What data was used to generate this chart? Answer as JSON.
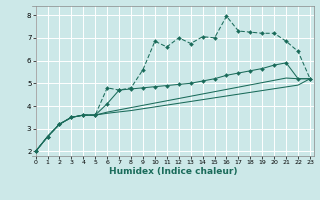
{
  "xlabel": "Humidex (Indice chaleur)",
  "bg_color": "#cce8e8",
  "grid_color": "#ffffff",
  "line_color": "#1a6b5a",
  "x_ticks": [
    0,
    1,
    2,
    3,
    4,
    5,
    6,
    7,
    8,
    9,
    10,
    11,
    12,
    13,
    14,
    15,
    16,
    17,
    18,
    19,
    20,
    21,
    22,
    23
  ],
  "y_ticks": [
    2,
    3,
    4,
    5,
    6,
    7,
    8
  ],
  "ylim": [
    1.8,
    8.4
  ],
  "xlim": [
    -0.3,
    23.3
  ],
  "line1_x": [
    0,
    1,
    2,
    3,
    4,
    5,
    6,
    7,
    8,
    9,
    10,
    11,
    12,
    13,
    14,
    15,
    16,
    17,
    18,
    19,
    20,
    21,
    22,
    23
  ],
  "line1_y": [
    2.0,
    2.65,
    3.2,
    3.5,
    3.6,
    3.6,
    4.8,
    4.7,
    4.8,
    5.6,
    6.85,
    6.6,
    7.0,
    6.75,
    7.05,
    7.0,
    7.95,
    7.3,
    7.25,
    7.2,
    7.2,
    6.85,
    6.4,
    5.2
  ],
  "line2_x": [
    0,
    1,
    2,
    3,
    4,
    5,
    6,
    7,
    8,
    9,
    10,
    11,
    12,
    13,
    14,
    15,
    16,
    17,
    18,
    19,
    20,
    21,
    22,
    23
  ],
  "line2_y": [
    2.0,
    2.65,
    3.2,
    3.5,
    3.6,
    3.6,
    4.1,
    4.7,
    4.75,
    4.8,
    4.85,
    4.9,
    4.95,
    5.0,
    5.1,
    5.2,
    5.35,
    5.45,
    5.55,
    5.65,
    5.8,
    5.9,
    5.2,
    5.2
  ],
  "line3_x": [
    0,
    1,
    2,
    3,
    4,
    5,
    6,
    7,
    8,
    9,
    10,
    11,
    12,
    13,
    14,
    15,
    16,
    17,
    18,
    19,
    20,
    21,
    22,
    23
  ],
  "line3_y": [
    2.0,
    2.65,
    3.2,
    3.5,
    3.6,
    3.6,
    3.73,
    3.83,
    3.93,
    4.03,
    4.13,
    4.23,
    4.33,
    4.43,
    4.53,
    4.63,
    4.73,
    4.83,
    4.93,
    5.03,
    5.13,
    5.23,
    5.2,
    5.2
  ],
  "line4_x": [
    0,
    1,
    2,
    3,
    4,
    5,
    6,
    7,
    8,
    9,
    10,
    11,
    12,
    13,
    14,
    15,
    16,
    17,
    18,
    19,
    20,
    21,
    22,
    23
  ],
  "line4_y": [
    2.0,
    2.65,
    3.2,
    3.5,
    3.6,
    3.6,
    3.68,
    3.74,
    3.8,
    3.88,
    3.96,
    4.04,
    4.12,
    4.2,
    4.28,
    4.36,
    4.44,
    4.52,
    4.6,
    4.68,
    4.76,
    4.84,
    4.92,
    5.2
  ]
}
